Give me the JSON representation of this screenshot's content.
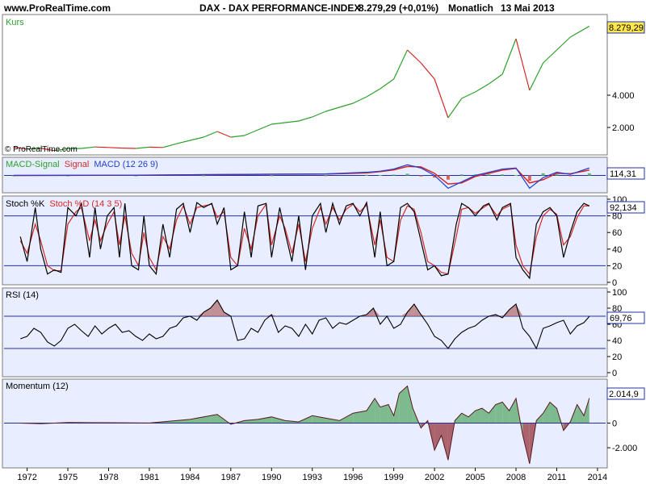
{
  "header": {
    "site": "www.ProRealTime.com",
    "instrument": "DAX - DAX PERFORMANCE-INDEX",
    "price": "8.279,29 (+0,01%)",
    "period": "Monatlich",
    "date": "13 Mai 2013"
  },
  "watermark": "© ProRealTime.com",
  "colors": {
    "background": "#ffffff",
    "panel_bg": "#e8eeff",
    "panel_bg_light": "#f4f7ff",
    "price_up": "#2ca02c",
    "price_down": "#d62728",
    "macd_signal": "#2ca02c",
    "signal": "#d62728",
    "macd": "#1f3fcf",
    "hist_pos": "#5fbf5f",
    "hist_neg": "#e06060",
    "stoch_k": "#000000",
    "stoch_d": "#d62728",
    "band_line": "#1f2fa8",
    "rsi": "#000000",
    "rsi_fill": "#b06868",
    "momentum_pos_fill": "#6ab27a",
    "momentum_neg_fill": "#a04a55",
    "label_box_border": "#1f2fa8"
  },
  "chart_data": [
    {
      "type": "line",
      "panel": "price",
      "label": "Kurs",
      "y_ticks": [
        "2.000",
        "4.000"
      ],
      "y_tick_values": [
        2000,
        4000
      ],
      "ylim": [
        400,
        8800
      ],
      "last_value_label": "8.279,29",
      "x": [
        1971,
        1972,
        1973,
        1974,
        1975,
        1976,
        1977,
        1978,
        1979,
        1980,
        1981,
        1982,
        1983,
        1984,
        1985,
        1986,
        1987,
        1988,
        1989,
        1990,
        1991,
        1992,
        1993,
        1994,
        1995,
        1996,
        1997,
        1998,
        1999,
        2000,
        2001,
        2002,
        2003,
        2004,
        2005,
        2006,
        2007,
        2008,
        2009,
        2010,
        2011,
        2012,
        2013.4
      ],
      "values": [
        780,
        660,
        720,
        560,
        680,
        700,
        790,
        760,
        720,
        700,
        780,
        760,
        990,
        1200,
        1400,
        1750,
        1400,
        1500,
        1850,
        2200,
        2300,
        2400,
        2650,
        3000,
        3250,
        3500,
        3900,
        4400,
        5000,
        6800,
        6000,
        5000,
        2600,
        3800,
        4200,
        4700,
        5300,
        7500,
        4300,
        6000,
        6800,
        7600,
        8279
      ]
    },
    {
      "type": "line",
      "panel": "macd",
      "label": "MACD-Signal Signal MACD (12 26 9)",
      "legend": [
        {
          "text": "MACD-Signal",
          "color": "#2ca02c"
        },
        {
          "text": "Signal",
          "color": "#d62728"
        },
        {
          "text": "MACD (12 26 9)",
          "color": "#1f3fcf"
        }
      ],
      "last_value_label": "114,31",
      "ylim": [
        -700,
        700
      ],
      "x": [
        1971,
        1975,
        1980,
        1985,
        1990,
        1994,
        1997,
        1998,
        1999,
        2000,
        2001,
        2002,
        2003,
        2004,
        2005,
        2006,
        2007,
        2008,
        2009,
        2010,
        2011,
        2012,
        2013.4
      ],
      "macd": [
        0,
        5,
        10,
        40,
        60,
        70,
        150,
        200,
        300,
        500,
        350,
        0,
        -600,
        -300,
        0,
        150,
        300,
        350,
        -600,
        -100,
        150,
        50,
        350
      ],
      "signal": [
        0,
        5,
        10,
        35,
        55,
        65,
        120,
        180,
        260,
        420,
        400,
        100,
        -400,
        -350,
        -50,
        100,
        250,
        330,
        -350,
        -200,
        100,
        80,
        250
      ],
      "histogram": [
        0,
        0,
        0,
        5,
        5,
        5,
        30,
        20,
        40,
        80,
        -50,
        -100,
        -200,
        50,
        50,
        50,
        50,
        20,
        -250,
        100,
        50,
        -30,
        100
      ]
    },
    {
      "type": "line",
      "panel": "stochastic",
      "label": "Stoch %K Stoch %D (14 3 5)",
      "legend": [
        {
          "text": "Stoch %K",
          "color": "#000000"
        },
        {
          "text": "Stoch %D (14 3 5)",
          "color": "#d62728"
        }
      ],
      "y_ticks": [
        "0",
        "20",
        "40",
        "60",
        "80",
        "100"
      ],
      "y_tick_values": [
        0,
        20,
        40,
        60,
        80,
        100
      ],
      "bands": [
        20,
        80
      ],
      "ylim": [
        0,
        100
      ],
      "last_value_label": "92,134",
      "x": [
        1971.5,
        1972,
        1972.6,
        1973,
        1973.5,
        1974,
        1974.5,
        1975,
        1975.6,
        1976,
        1976.6,
        1977,
        1977.4,
        1977.9,
        1978.4,
        1978.8,
        1979.2,
        1979.7,
        1980.2,
        1980.6,
        1981,
        1981.5,
        1982,
        1982.5,
        1983,
        1983.5,
        1984,
        1984.5,
        1985,
        1985.6,
        1986,
        1986.5,
        1987,
        1987.5,
        1988,
        1988.5,
        1989,
        1989.6,
        1990,
        1990.6,
        1991,
        1991.5,
        1992,
        1992.5,
        1993,
        1993.6,
        1994,
        1994.5,
        1995,
        1995.5,
        1996,
        1996.5,
        1997,
        1997.6,
        1998,
        1998.5,
        1999,
        1999.5,
        2000,
        2000.5,
        2001,
        2001.5,
        2002,
        2002.5,
        2003,
        2003.6,
        2004,
        2004.5,
        2005,
        2005.6,
        2006,
        2006.6,
        2007,
        2007.6,
        2008,
        2008.5,
        2009,
        2009.5,
        2010,
        2010.5,
        2011,
        2011.5,
        2012,
        2012.5,
        2013,
        2013.4
      ],
      "k": [
        55,
        25,
        90,
        40,
        10,
        15,
        12,
        90,
        80,
        95,
        30,
        90,
        40,
        80,
        90,
        30,
        95,
        20,
        15,
        80,
        20,
        10,
        70,
        30,
        88,
        95,
        60,
        96,
        90,
        95,
        70,
        90,
        15,
        20,
        85,
        30,
        92,
        95,
        30,
        90,
        60,
        25,
        80,
        15,
        80,
        95,
        60,
        95,
        70,
        92,
        95,
        80,
        96,
        30,
        85,
        20,
        25,
        90,
        95,
        85,
        50,
        15,
        20,
        8,
        10,
        70,
        95,
        90,
        80,
        92,
        95,
        75,
        90,
        95,
        30,
        15,
        5,
        70,
        85,
        90,
        80,
        30,
        60,
        85,
        95,
        92
      ],
      "d": [
        50,
        35,
        70,
        50,
        20,
        14,
        14,
        70,
        85,
        90,
        50,
        75,
        50,
        70,
        85,
        45,
        80,
        35,
        20,
        60,
        30,
        15,
        55,
        40,
        75,
        92,
        70,
        90,
        92,
        94,
        78,
        85,
        30,
        20,
        65,
        40,
        80,
        94,
        45,
        80,
        65,
        35,
        70,
        25,
        65,
        90,
        70,
        90,
        75,
        88,
        94,
        85,
        93,
        45,
        75,
        30,
        25,
        75,
        92,
        88,
        60,
        25,
        20,
        12,
        10,
        55,
        88,
        90,
        83,
        90,
        94,
        80,
        88,
        93,
        45,
        20,
        10,
        55,
        80,
        88,
        82,
        45,
        55,
        78,
        92,
        92
      ]
    },
    {
      "type": "line",
      "panel": "rsi",
      "label": "RSI (14)",
      "y_ticks": [
        "0",
        "20",
        "40",
        "60",
        "80",
        "100"
      ],
      "y_tick_values": [
        0,
        20,
        40,
        60,
        80,
        100
      ],
      "bands": [
        30,
        70
      ],
      "ylim": [
        0,
        100
      ],
      "last_value_label": "69,76",
      "x": [
        1971.5,
        1972,
        1972.5,
        1973,
        1973.5,
        1974,
        1974.5,
        1975,
        1975.5,
        1976,
        1976.5,
        1977,
        1977.5,
        1978,
        1978.5,
        1979,
        1979.5,
        1980,
        1980.5,
        1981,
        1981.5,
        1982,
        1982.5,
        1983,
        1983.5,
        1984,
        1984.5,
        1985,
        1985.5,
        1986,
        1986.5,
        1987,
        1987.5,
        1988,
        1988.5,
        1989,
        1989.5,
        1990,
        1990.5,
        1991,
        1991.5,
        1992,
        1992.5,
        1993,
        1993.5,
        1994,
        1994.5,
        1995,
        1995.5,
        1996,
        1996.5,
        1997,
        1997.5,
        1998,
        1998.5,
        1999,
        1999.5,
        2000,
        2000.5,
        2001,
        2001.5,
        2002,
        2002.5,
        2003,
        2003.5,
        2004,
        2004.5,
        2005,
        2005.5,
        2006,
        2006.5,
        2007,
        2007.5,
        2008,
        2008.5,
        2009,
        2009.5,
        2010,
        2010.5,
        2011,
        2011.5,
        2012,
        2012.5,
        2013,
        2013.4
      ],
      "values": [
        42,
        45,
        55,
        50,
        38,
        33,
        40,
        55,
        60,
        52,
        45,
        58,
        48,
        55,
        60,
        50,
        52,
        45,
        40,
        48,
        42,
        45,
        55,
        58,
        68,
        70,
        65,
        75,
        80,
        90,
        75,
        70,
        40,
        42,
        55,
        50,
        65,
        72,
        50,
        58,
        55,
        45,
        60,
        48,
        65,
        68,
        55,
        62,
        60,
        65,
        70,
        72,
        80,
        60,
        70,
        55,
        60,
        75,
        85,
        72,
        60,
        45,
        40,
        30,
        42,
        50,
        55,
        58,
        65,
        70,
        72,
        68,
        78,
        85,
        55,
        45,
        30,
        55,
        58,
        62,
        65,
        48,
        58,
        62,
        69.76
      ]
    },
    {
      "type": "area",
      "panel": "momentum",
      "label": "Momentum (12)",
      "y_ticks": [
        "-2.000",
        "0"
      ],
      "y_tick_values": [
        -2000,
        0
      ],
      "ylim": [
        -3500,
        3300
      ],
      "last_value_label": "2.014,9",
      "x_ticks": [
        "1972",
        "1975",
        "1978",
        "1981",
        "1984",
        "1987",
        "1990",
        "1993",
        "1996",
        "1999",
        "2002",
        "2005",
        "2008",
        "2011",
        "2014"
      ],
      "x_tick_values": [
        1972,
        1975,
        1978,
        1981,
        1984,
        1987,
        1990,
        1993,
        1996,
        1999,
        2002,
        2005,
        2008,
        2011,
        2014
      ],
      "x": [
        1971.5,
        1973,
        1975,
        1977,
        1979,
        1981,
        1983,
        1984,
        1985.5,
        1986,
        1987,
        1988,
        1989,
        1990,
        1991,
        1992,
        1993,
        1994,
        1995,
        1996,
        1997,
        1997.6,
        1998,
        1998.6,
        1999,
        1999.4,
        2000,
        2000.4,
        2001,
        2001.5,
        2002,
        2002.5,
        2003,
        2003.5,
        2004,
        2004.5,
        2005,
        2005.5,
        2006,
        2006.5,
        2007,
        2007.5,
        2008,
        2008.5,
        2009,
        2009.5,
        2010,
        2010.5,
        2011,
        2011.5,
        2012,
        2012.5,
        2013,
        2013.4
      ],
      "values": [
        0,
        -50,
        50,
        30,
        20,
        10,
        200,
        300,
        600,
        700,
        -100,
        200,
        300,
        500,
        200,
        100,
        600,
        400,
        200,
        800,
        1000,
        2000,
        1300,
        1500,
        600,
        2400,
        3000,
        1200,
        -400,
        200,
        -2200,
        -1000,
        -3000,
        200,
        800,
        500,
        1000,
        1200,
        800,
        1500,
        1700,
        1000,
        2000,
        -1000,
        -3300,
        200,
        800,
        1700,
        1200,
        -600,
        100,
        1500,
        600,
        2014.9
      ]
    }
  ]
}
